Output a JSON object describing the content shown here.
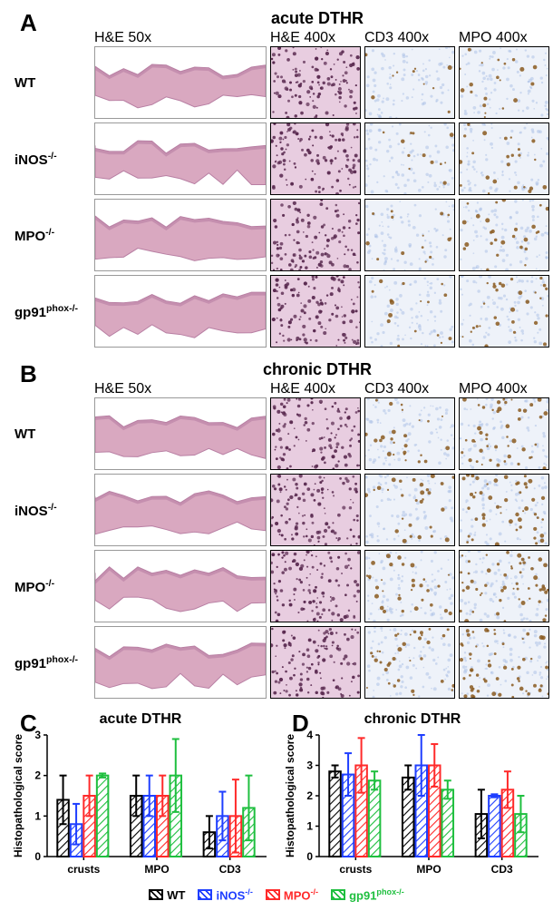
{
  "panelA": {
    "letter": "A",
    "title": "acute DTHR",
    "col_headers": [
      "H&E 50x",
      "H&E 400x",
      "CD3 400x",
      "MPO 400x"
    ],
    "row_labels": [
      "WT",
      "iNOS<sup>-/-</sup>",
      "MPO<sup>-/-</sup>",
      "gp91<sup>phox-/-</sup>"
    ]
  },
  "panelB": {
    "letter": "B",
    "title": "chronic DTHR",
    "col_headers": [
      "H&E 50x",
      "H&E 400x",
      "CD3 400x",
      "MPO 400x"
    ],
    "row_labels": [
      "WT",
      "iNOS<sup>-/-</sup>",
      "MPO<sup>-/-</sup>",
      "gp91<sup>phox-/-</sup>"
    ]
  },
  "panelC": {
    "letter": "C",
    "title": "acute DTHR",
    "ylabel": "Histopathological score",
    "ylim": [
      0,
      3
    ],
    "ytick_step": 1,
    "categories": [
      "crusts",
      "MPO",
      "CD3"
    ],
    "series": [
      {
        "name": "WT",
        "color": "#000000"
      },
      {
        "name": "iNOS-/-",
        "html_label": "iNOS<sup>-/-</sup>",
        "color": "#1f3fff"
      },
      {
        "name": "MPO-/-",
        "html_label": "MPO<sup>-/-</sup>",
        "color": "#ff2a2a"
      },
      {
        "name": "gp91phox-/-",
        "html_label": "gp91<sup>phox-/-</sup>",
        "color": "#1fbf3f"
      }
    ],
    "data": {
      "crusts": {
        "WT": {
          "mean": 1.4,
          "err": 0.6
        },
        "iNOS-/-": {
          "mean": 0.8,
          "err": 0.5
        },
        "MPO-/-": {
          "mean": 1.5,
          "err": 0.5
        },
        "gp91phox-/-": {
          "mean": 2.0,
          "err": 0.05
        }
      },
      "MPO": {
        "WT": {
          "mean": 1.5,
          "err": 0.5
        },
        "iNOS-/-": {
          "mean": 1.5,
          "err": 0.5
        },
        "MPO-/-": {
          "mean": 1.5,
          "err": 0.5
        },
        "gp91phox-/-": {
          "mean": 2.0,
          "err": 0.9
        }
      },
      "CD3": {
        "WT": {
          "mean": 0.6,
          "err": 0.4
        },
        "iNOS-/-": {
          "mean": 1.0,
          "err": 0.6
        },
        "MPO-/-": {
          "mean": 1.0,
          "err": 0.9
        },
        "gp91phox-/-": {
          "mean": 1.2,
          "err": 0.8
        }
      }
    },
    "bar_width": 0.18,
    "axis_color": "#000000",
    "label_fontsize": 12,
    "tick_fontsize": 12
  },
  "panelD": {
    "letter": "D",
    "title": "chronic DTHR",
    "ylabel": "Histopathological score",
    "ylim": [
      0,
      4
    ],
    "ytick_step": 1,
    "categories": [
      "crusts",
      "MPO",
      "CD3"
    ],
    "series": [
      {
        "name": "WT",
        "color": "#000000"
      },
      {
        "name": "iNOS-/-",
        "html_label": "iNOS<sup>-/-</sup>",
        "color": "#1f3fff"
      },
      {
        "name": "MPO-/-",
        "html_label": "MPO<sup>-/-</sup>",
        "color": "#ff2a2a"
      },
      {
        "name": "gp91phox-/-",
        "html_label": "gp91<sup>phox-/-</sup>",
        "color": "#1fbf3f"
      }
    ],
    "data": {
      "crusts": {
        "WT": {
          "mean": 2.8,
          "err": 0.2
        },
        "iNOS-/-": {
          "mean": 2.7,
          "err": 0.7
        },
        "MPO-/-": {
          "mean": 3.0,
          "err": 0.9
        },
        "gp91phox-/-": {
          "mean": 2.5,
          "err": 0.3
        }
      },
      "MPO": {
        "WT": {
          "mean": 2.6,
          "err": 0.4
        },
        "iNOS-/-": {
          "mean": 3.0,
          "err": 1.0
        },
        "MPO-/-": {
          "mean": 3.0,
          "err": 0.7
        },
        "gp91phox-/-": {
          "mean": 2.2,
          "err": 0.3
        }
      },
      "CD3": {
        "WT": {
          "mean": 1.4,
          "err": 0.8
        },
        "iNOS-/-": {
          "mean": 2.0,
          "err": 0.05
        },
        "MPO-/-": {
          "mean": 2.2,
          "err": 0.6
        },
        "gp91phox-/-": {
          "mean": 1.4,
          "err": 0.6
        }
      }
    },
    "bar_width": 0.18,
    "axis_color": "#000000",
    "label_fontsize": 12,
    "tick_fontsize": 12
  },
  "legend_items": [
    {
      "label": "WT",
      "color": "#000000"
    },
    {
      "label": "iNOS<sup>-/-</sup>",
      "color": "#1f3fff"
    },
    {
      "label": "MPO<sup>-/-</sup>",
      "color": "#ff2a2a"
    },
    {
      "label": "gp91<sup>phox-/-</sup>",
      "color": "#1fbf3f"
    }
  ],
  "micrograph_colors": {
    "he50_bg": "#ffffff",
    "he50_tissue": "#d9a8c0",
    "he50_tissue_dark": "#b87fa3",
    "he400_bg": "#e8cde0",
    "he400_dot": "#5a2a50",
    "ihc_bg": "#eef2f9",
    "ihc_blue": "#a7bde6",
    "ihc_brown": "#8a5a20"
  }
}
